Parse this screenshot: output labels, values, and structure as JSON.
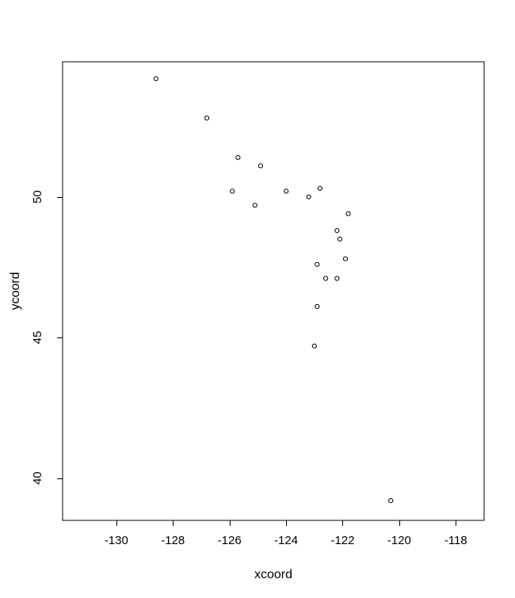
{
  "page": {
    "background_color": "#ffffff",
    "foreground_color": "#000000"
  },
  "chart_data": {
    "type": "scatter",
    "title": "",
    "xlabel": "xcoord",
    "ylabel": "ycoord",
    "xlim": [
      -131.9,
      -117.0
    ],
    "ylim": [
      38.5,
      54.8
    ],
    "x_ticks": [
      -130,
      -128,
      -126,
      -124,
      -122,
      -120,
      -118
    ],
    "y_ticks": [
      40,
      45,
      50
    ],
    "grid": false,
    "legend": false,
    "marker": "open-circle",
    "marker_color": "#000000",
    "marker_radius_px": 2.6,
    "points": [
      {
        "x": -128.6,
        "y": 54.2
      },
      {
        "x": -126.8,
        "y": 52.8
      },
      {
        "x": -125.7,
        "y": 51.4
      },
      {
        "x": -124.9,
        "y": 51.1
      },
      {
        "x": -125.9,
        "y": 50.2
      },
      {
        "x": -125.1,
        "y": 49.7
      },
      {
        "x": -124.0,
        "y": 50.2
      },
      {
        "x": -123.2,
        "y": 50.0
      },
      {
        "x": -122.8,
        "y": 50.3
      },
      {
        "x": -121.8,
        "y": 49.4
      },
      {
        "x": -122.2,
        "y": 48.8
      },
      {
        "x": -122.1,
        "y": 48.5
      },
      {
        "x": -121.9,
        "y": 47.8
      },
      {
        "x": -122.9,
        "y": 47.6
      },
      {
        "x": -122.6,
        "y": 47.1
      },
      {
        "x": -122.2,
        "y": 47.1
      },
      {
        "x": -122.9,
        "y": 46.1
      },
      {
        "x": -123.0,
        "y": 44.7
      },
      {
        "x": -120.3,
        "y": 39.2
      }
    ]
  }
}
